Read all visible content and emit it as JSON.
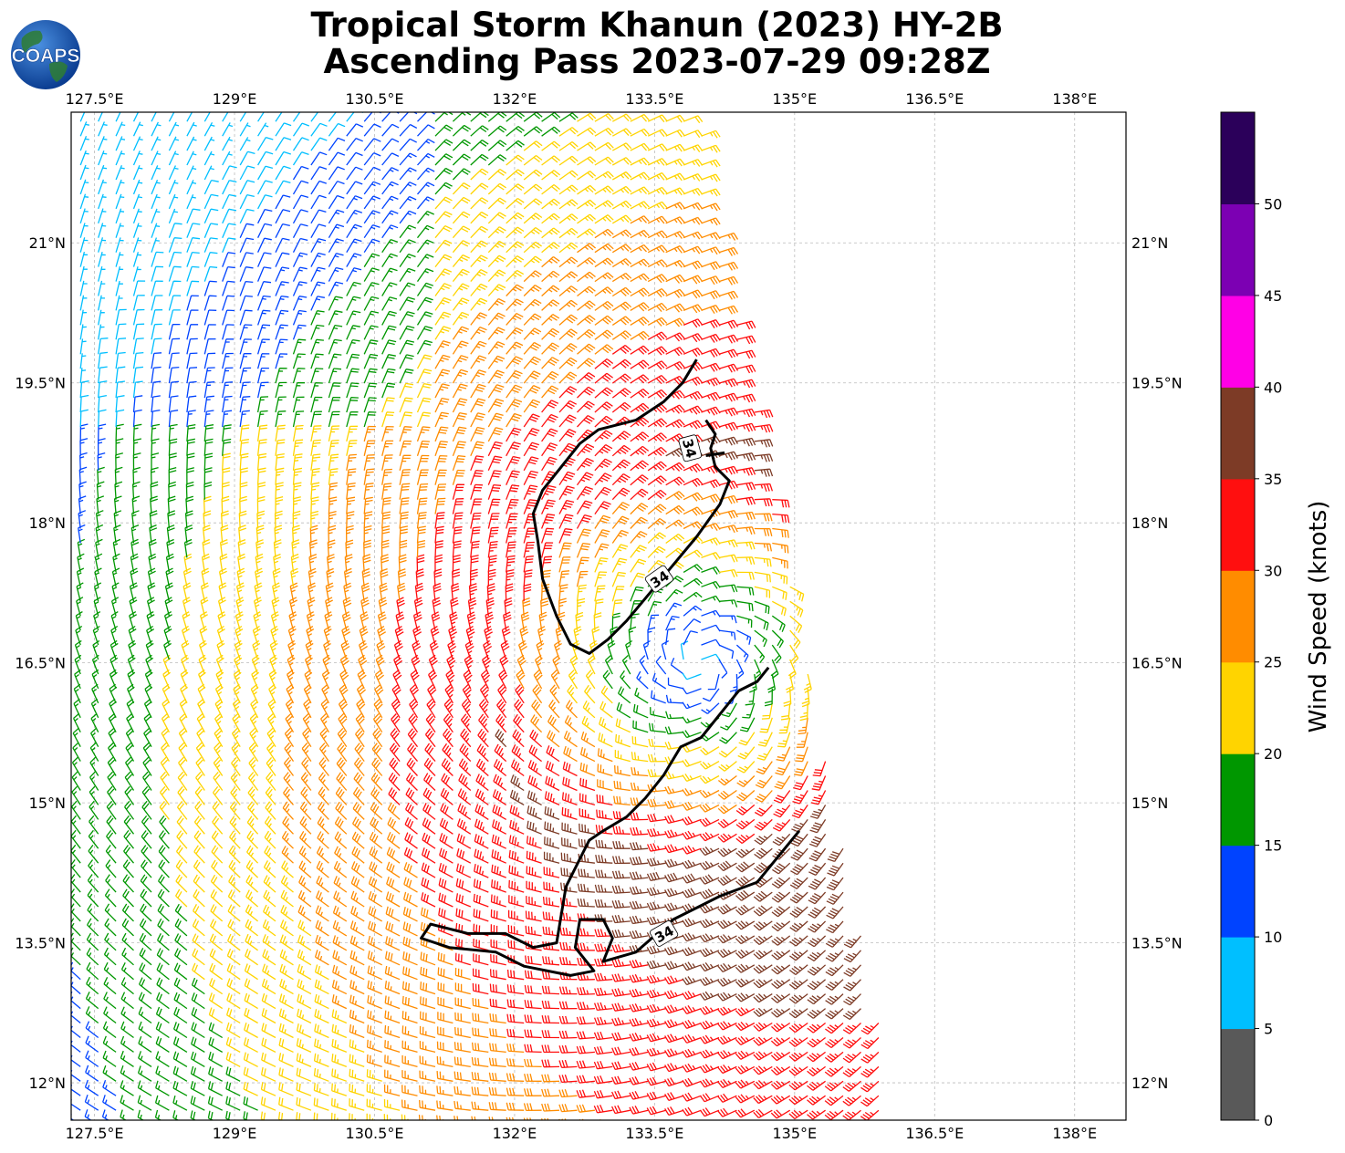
{
  "title": {
    "line1": "Tropical Storm Khanun (2023) HY-2B",
    "line2": "Ascending Pass 2023-07-29 09:28Z"
  },
  "logo": {
    "text": "COAPS"
  },
  "map": {
    "lon_range": [
      127.25,
      138.55
    ],
    "lat_range": [
      11.6,
      22.4
    ],
    "lon_ticks": [
      "127.5°E",
      "129°E",
      "130.5°E",
      "132°E",
      "133.5°E",
      "135°E",
      "136.5°E",
      "138°E"
    ],
    "lon_tick_values": [
      127.5,
      129.0,
      130.5,
      132.0,
      133.5,
      135.0,
      136.5,
      138.0
    ],
    "lat_ticks": [
      "12°N",
      "13.5°N",
      "15°N",
      "16.5°N",
      "18°N",
      "19.5°N",
      "21°N"
    ],
    "lat_tick_values": [
      12.0,
      13.5,
      15.0,
      16.5,
      18.0,
      19.5,
      21.0
    ],
    "gridlines": true,
    "storm_center": {
      "lon": 134.0,
      "lat": 16.5
    },
    "contour_label": "34",
    "contour_label_positions": [
      {
        "lon": 133.88,
        "lat": 18.8,
        "rot": 75
      },
      {
        "lon": 133.55,
        "lat": 17.4,
        "rot": -35
      },
      {
        "lon": 133.6,
        "lat": 13.6,
        "rot": -30
      }
    ],
    "contour_34kt": [
      [
        [
          133.95,
          19.75
        ],
        [
          133.8,
          19.5
        ],
        [
          133.6,
          19.3
        ],
        [
          133.3,
          19.1
        ],
        [
          132.9,
          19.0
        ],
        [
          132.7,
          18.85
        ],
        [
          132.5,
          18.6
        ],
        [
          132.3,
          18.35
        ],
        [
          132.2,
          18.1
        ],
        [
          132.25,
          17.8
        ],
        [
          132.3,
          17.4
        ],
        [
          132.45,
          17.0
        ],
        [
          132.6,
          16.7
        ],
        [
          132.8,
          16.6
        ],
        [
          133.0,
          16.75
        ],
        [
          133.2,
          16.95
        ],
        [
          133.45,
          17.25
        ],
        [
          133.7,
          17.55
        ],
        [
          133.95,
          17.85
        ],
        [
          134.2,
          18.2
        ],
        [
          134.3,
          18.45
        ],
        [
          134.15,
          18.6
        ],
        [
          134.1,
          18.8
        ],
        [
          134.15,
          18.95
        ],
        [
          134.05,
          19.1
        ]
      ],
      [
        [
          134.05,
          18.72
        ],
        [
          134.25,
          18.75
        ]
      ],
      [
        [
          134.72,
          16.45
        ],
        [
          134.6,
          16.3
        ],
        [
          134.4,
          16.2
        ],
        [
          134.2,
          15.95
        ],
        [
          134.0,
          15.7
        ],
        [
          133.78,
          15.6
        ],
        [
          133.6,
          15.3
        ],
        [
          133.4,
          15.05
        ],
        [
          133.2,
          14.85
        ],
        [
          132.95,
          14.7
        ],
        [
          132.8,
          14.6
        ],
        [
          132.7,
          14.4
        ],
        [
          132.55,
          14.1
        ],
        [
          132.5,
          13.8
        ],
        [
          132.45,
          13.5
        ],
        [
          132.2,
          13.45
        ],
        [
          131.9,
          13.6
        ],
        [
          131.5,
          13.6
        ],
        [
          131.1,
          13.7
        ],
        [
          131.0,
          13.55
        ],
        [
          131.3,
          13.45
        ],
        [
          131.8,
          13.4
        ],
        [
          132.1,
          13.25
        ],
        [
          132.6,
          13.15
        ],
        [
          132.85,
          13.2
        ],
        [
          132.65,
          13.45
        ],
        [
          132.7,
          13.75
        ],
        [
          132.95,
          13.75
        ],
        [
          133.05,
          13.55
        ],
        [
          132.95,
          13.3
        ],
        [
          133.3,
          13.4
        ],
        [
          133.7,
          13.75
        ],
        [
          134.2,
          14.0
        ],
        [
          134.6,
          14.15
        ],
        [
          135.05,
          14.7
        ]
      ]
    ],
    "legend_colors": [
      "#595959",
      "#00bfff",
      "#0043ff",
      "#009700",
      "#ffd400",
      "#ff8c00",
      "#ff0f0f",
      "#7d3b26",
      "#ff00e6",
      "#7c00b3",
      "#2b005a"
    ]
  },
  "colorbar": {
    "label": "Wind Speed (knots)",
    "ticks": [
      "0",
      "5",
      "10",
      "15",
      "20",
      "25",
      "30",
      "35",
      "40",
      "45",
      "50"
    ],
    "colors": [
      "#595959",
      "#00bfff",
      "#0043ff",
      "#009700",
      "#ffd400",
      "#ff8c00",
      "#ff0f0f",
      "#7d3b26",
      "#ff00e6",
      "#7c00b3",
      "#2b005a"
    ]
  }
}
